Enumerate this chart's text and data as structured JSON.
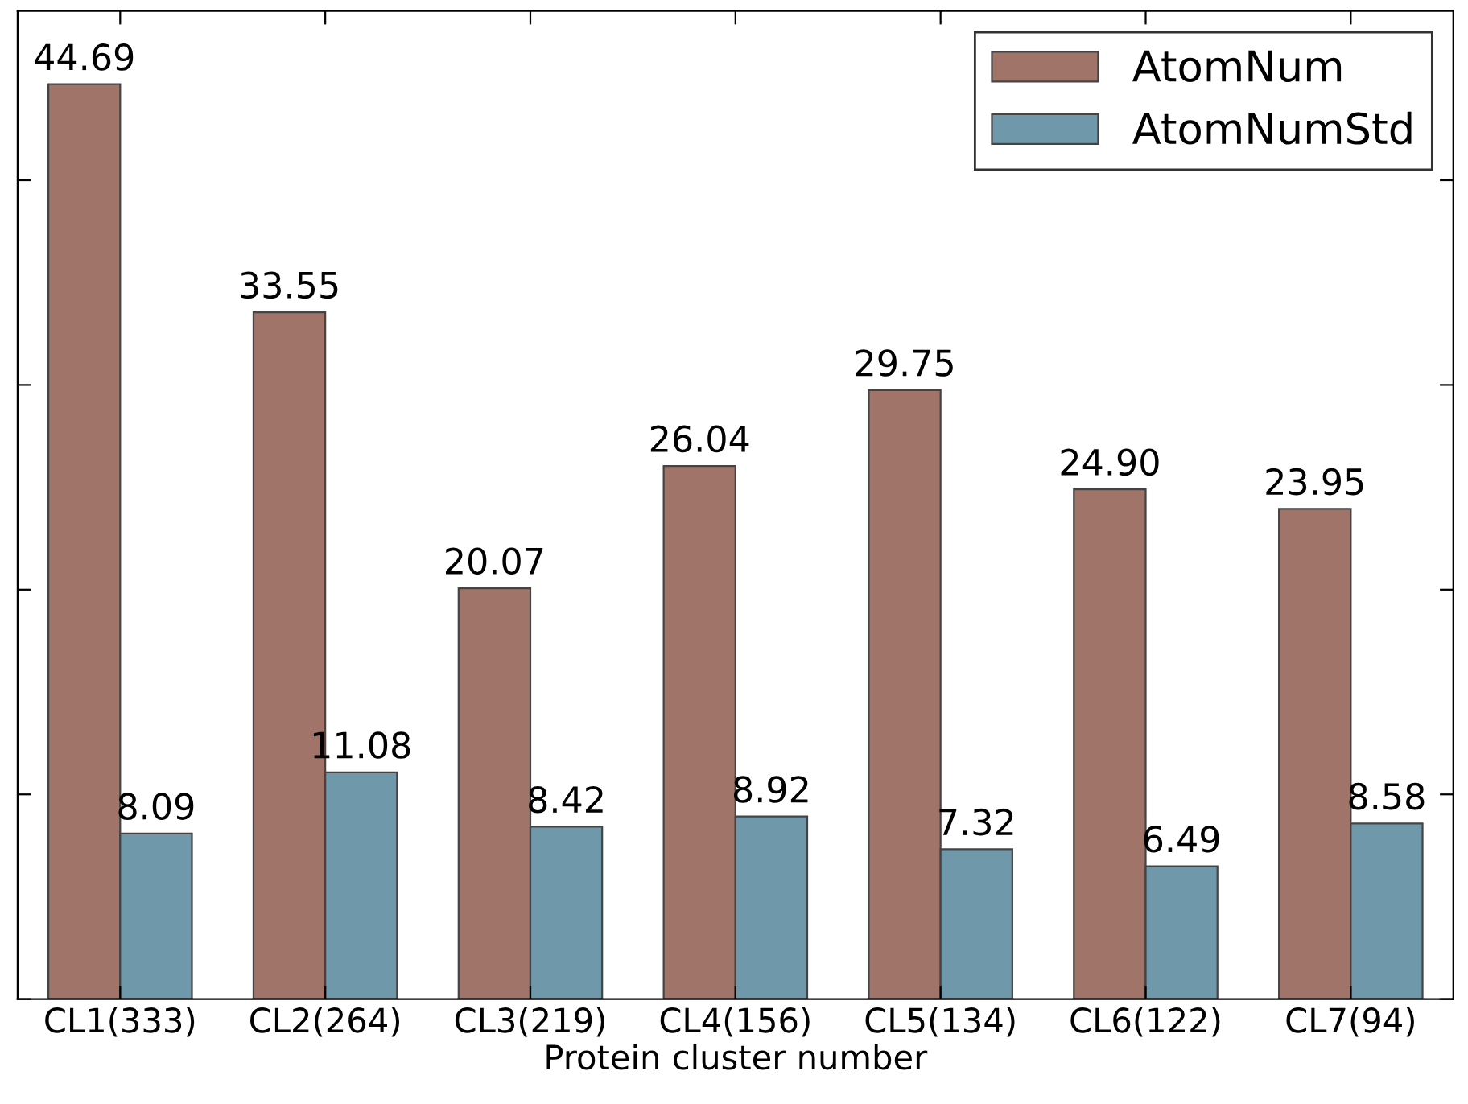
{
  "chart_data": {
    "type": "bar",
    "xlabel": "Protein cluster number",
    "categories": [
      "CL1(333)",
      "CL2(264)",
      "CL3(219)",
      "CL4(156)",
      "CL5(134)",
      "CL6(122)",
      "CL7(94)"
    ],
    "series": [
      {
        "name": "AtomNum",
        "color": "#a07468",
        "values": [
          44.69,
          33.55,
          20.07,
          26.04,
          29.75,
          24.9,
          23.95
        ],
        "value_labels": [
          "44.69",
          "33.55",
          "20.07",
          "26.04",
          "29.75",
          "24.90",
          "23.95"
        ]
      },
      {
        "name": "AtomNumStd",
        "color": "#6f99ab",
        "values": [
          8.09,
          11.08,
          8.42,
          8.92,
          7.32,
          6.49,
          8.58
        ],
        "value_labels": [
          "8.09",
          "11.08",
          "8.42",
          "8.92",
          "7.32",
          "6.49",
          "8.58"
        ]
      }
    ],
    "tick_labels": "x",
    "legend": "top right",
    "grid": false
  }
}
